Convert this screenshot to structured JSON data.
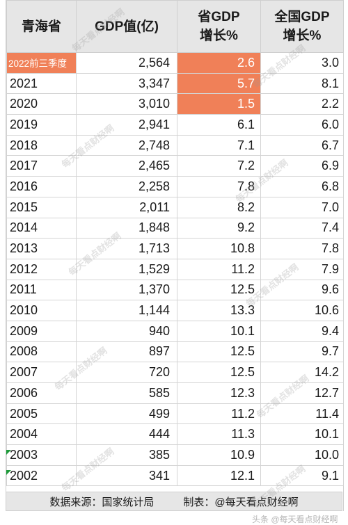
{
  "table": {
    "headers": {
      "col1": "青海省",
      "col2": "GDP值(亿)",
      "col3_line1": "省GDP",
      "col3_line2": "增长%",
      "col4_line1": "全国GDP",
      "col4_line2": "增长%"
    },
    "rows": [
      {
        "year": "2022前三季度",
        "gdp": "2,564",
        "prov": "2.6",
        "nat": "3.0"
      },
      {
        "year": "2021",
        "gdp": "3,347",
        "prov": "5.7",
        "nat": "8.1"
      },
      {
        "year": "2020",
        "gdp": "3,010",
        "prov": "1.5",
        "nat": "2.2"
      },
      {
        "year": "2019",
        "gdp": "2,941",
        "prov": "6.1",
        "nat": "6.0"
      },
      {
        "year": "2018",
        "gdp": "2,748",
        "prov": "7.1",
        "nat": "6.7"
      },
      {
        "year": "2017",
        "gdp": "2,465",
        "prov": "7.2",
        "nat": "6.9"
      },
      {
        "year": "2016",
        "gdp": "2,258",
        "prov": "7.8",
        "nat": "6.8"
      },
      {
        "year": "2015",
        "gdp": "2,011",
        "prov": "8.2",
        "nat": "7.0"
      },
      {
        "year": "2014",
        "gdp": "1,848",
        "prov": "9.2",
        "nat": "7.4"
      },
      {
        "year": "2013",
        "gdp": "1,713",
        "prov": "10.8",
        "nat": "7.8"
      },
      {
        "year": "2012",
        "gdp": "1,529",
        "prov": "11.2",
        "nat": "7.9"
      },
      {
        "year": "2011",
        "gdp": "1,370",
        "prov": "12.5",
        "nat": "9.6"
      },
      {
        "year": "2010",
        "gdp": "1,144",
        "prov": "13.3",
        "nat": "10.6"
      },
      {
        "year": "2009",
        "gdp": "940",
        "prov": "10.1",
        "nat": "9.4"
      },
      {
        "year": "2008",
        "gdp": "897",
        "prov": "12.5",
        "nat": "9.7"
      },
      {
        "year": "2007",
        "gdp": "720",
        "prov": "12.5",
        "nat": "14.2"
      },
      {
        "year": "2006",
        "gdp": "585",
        "prov": "12.3",
        "nat": "12.7"
      },
      {
        "year": "2005",
        "gdp": "499",
        "prov": "11.2",
        "nat": "11.4"
      },
      {
        "year": "2004",
        "gdp": "444",
        "prov": "11.3",
        "nat": "10.1"
      },
      {
        "year": "2003",
        "gdp": "385",
        "prov": "10.9",
        "nat": "10.0"
      },
      {
        "year": "2002",
        "gdp": "341",
        "prov": "12.1",
        "nat": "9.1"
      }
    ],
    "highlight_color": "#f08058"
  },
  "footer": {
    "source": "数据来源：国家统计局",
    "maker": "制表：@每天看点财经啊"
  },
  "watermark": {
    "text": "每天看点财经啊",
    "bottom_text": "头条 @每天看点财经啊"
  }
}
